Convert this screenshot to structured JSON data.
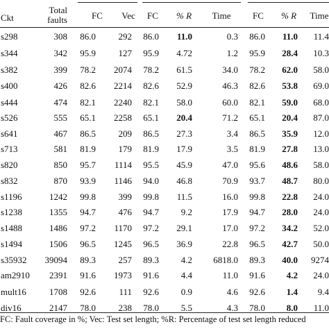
{
  "headers": {
    "ckt": "Ckt",
    "total_faults_line1": "Total",
    "total_faults_line2": "faults",
    "group1": [
      "FC",
      "Vec"
    ],
    "group2": [
      "FC",
      "% R",
      "Time"
    ],
    "group3": [
      "FC",
      "% R",
      "Time"
    ]
  },
  "rows": [
    {
      "ckt": "s298",
      "faults": "308",
      "fc1": "86.0",
      "vec": "292",
      "fc2": "86.0",
      "r2": "11.0",
      "r2_bold": true,
      "time2": "0.3",
      "fc3": "86.0",
      "r3": "11.0",
      "r3_bold": true,
      "time3": "11.4"
    },
    {
      "ckt": "s344",
      "faults": "342",
      "fc1": "95.9",
      "vec": "127",
      "fc2": "95.9",
      "r2": "4.72",
      "r2_bold": false,
      "time2": "1.2",
      "fc3": "95.9",
      "r3": "28.4",
      "r3_bold": true,
      "time3": "10.3"
    },
    {
      "ckt": "s382",
      "faults": "399",
      "fc1": "78.2",
      "vec": "2074",
      "fc2": "78.2",
      "r2": "61.5",
      "r2_bold": false,
      "time2": "34.0",
      "fc3": "78.2",
      "r3": "62.0",
      "r3_bold": true,
      "time3": "58.0"
    },
    {
      "ckt": "s400",
      "faults": "426",
      "fc1": "82.6",
      "vec": "2214",
      "fc2": "82.6",
      "r2": "52.9",
      "r2_bold": false,
      "time2": "46.3",
      "fc3": "82.6",
      "r3": "53.8",
      "r3_bold": true,
      "time3": "69.0"
    },
    {
      "ckt": "s444",
      "faults": "474",
      "fc1": "82.1",
      "vec": "2240",
      "fc2": "82.1",
      "r2": "58.0",
      "r2_bold": false,
      "time2": "60.0",
      "fc3": "82.1",
      "r3": "59.0",
      "r3_bold": true,
      "time3": "68.0"
    },
    {
      "ckt": "s526",
      "faults": "555",
      "fc1": "65.1",
      "vec": "2258",
      "fc2": "65.1",
      "r2": "20.4",
      "r2_bold": true,
      "time2": "71.2",
      "fc3": "65.1",
      "r3": "20.4",
      "r3_bold": true,
      "time3": "87.0"
    },
    {
      "ckt": "s641",
      "faults": "467",
      "fc1": "86.5",
      "vec": "209",
      "fc2": "86.5",
      "r2": "27.3",
      "r2_bold": false,
      "time2": "3.4",
      "fc3": "86.5",
      "r3": "35.9",
      "r3_bold": true,
      "time3": "12.0"
    },
    {
      "ckt": "s713",
      "faults": "581",
      "fc1": "81.9",
      "vec": "179",
      "fc2": "81.9",
      "r2": "17.9",
      "r2_bold": false,
      "time2": "3.5",
      "fc3": "81.9",
      "r3": "27.8",
      "r3_bold": true,
      "time3": "13.0"
    },
    {
      "ckt": "s820",
      "faults": "850",
      "fc1": "95.7",
      "vec": "1114",
      "fc2": "95.5",
      "r2": "45.9",
      "r2_bold": false,
      "time2": "47.0",
      "fc3": "95.6",
      "r3": "48.6",
      "r3_bold": true,
      "time3": "58.0"
    },
    {
      "ckt": "s832",
      "faults": "870",
      "fc1": "93.9",
      "vec": "1146",
      "fc2": "94.0",
      "r2": "46.8",
      "r2_bold": false,
      "time2": "70.9",
      "fc3": "93.7",
      "r3": "48.7",
      "r3_bold": true,
      "time3": "80.0"
    },
    {
      "ckt": "s1196",
      "faults": "1242",
      "fc1": "99.8",
      "vec": "399",
      "fc2": "99.8",
      "r2": "11.5",
      "r2_bold": false,
      "time2": "16.0",
      "fc3": "99.8",
      "r3": "22.8",
      "r3_bold": true,
      "time3": "24.0"
    },
    {
      "ckt": "s1238",
      "faults": "1355",
      "fc1": "94.7",
      "vec": "476",
      "fc2": "94.7",
      "r2": "9.2",
      "r2_bold": false,
      "time2": "17.9",
      "fc3": "94.7",
      "r3": "28.0",
      "r3_bold": true,
      "time3": "24.0"
    },
    {
      "ckt": "s1488",
      "faults": "1486",
      "fc1": "97.2",
      "vec": "1170",
      "fc2": "97.2",
      "r2": "29.1",
      "r2_bold": false,
      "time2": "17.0",
      "fc3": "97.2",
      "r3": "34.2",
      "r3_bold": true,
      "time3": "52.0"
    },
    {
      "ckt": "s1494",
      "faults": "1506",
      "fc1": "96.5",
      "vec": "1245",
      "fc2": "96.5",
      "r2": "36.9",
      "r2_bold": false,
      "time2": "22.8",
      "fc3": "96.5",
      "r3": "42.7",
      "r3_bold": true,
      "time3": "50.0"
    },
    {
      "ckt": "s35932",
      "faults": "39094",
      "fc1": "89.3",
      "vec": "257",
      "fc2": "89.3",
      "r2": "4.2",
      "r2_bold": false,
      "time2": "6818.0",
      "fc3": "89.3",
      "r3": "40.0",
      "r3_bold": true,
      "time3": "9274"
    },
    {
      "ckt": "am2910",
      "faults": "2391",
      "fc1": "91.6",
      "vec": "1973",
      "fc2": "91.6",
      "r2": "4.4",
      "r2_bold": false,
      "time2": "11.0",
      "fc3": "91.6",
      "r3": "4.2",
      "r3_bold": true,
      "time3": "24.0"
    },
    {
      "ckt": "mult16",
      "faults": "1708",
      "fc1": "92.6",
      "vec": "111",
      "fc2": "92.6",
      "r2": "0.9",
      "r2_bold": false,
      "time2": "4.6",
      "fc3": "92.6",
      "r3": "1.4",
      "r3_bold": true,
      "time3": "9.4"
    },
    {
      "ckt": "div16",
      "faults": "2147",
      "fc1": "78.0",
      "vec": "238",
      "fc2": "78.0",
      "r2": "5.5",
      "r2_bold": false,
      "time2": "4.3",
      "fc3": "78.0",
      "r3": "8.0",
      "r3_bold": true,
      "time3": "11.0"
    }
  ],
  "footnote": "FC: Fault coverage in %; Vec: Test set length; %R: Percentage of test set length reduced"
}
